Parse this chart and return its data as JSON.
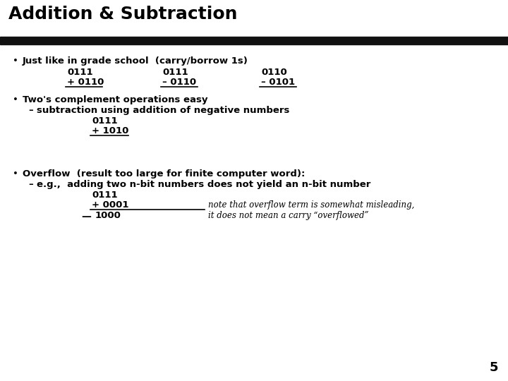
{
  "title": "Addition & Subtraction",
  "bg_color": "#ffffff",
  "title_color": "#000000",
  "bar_color": "#1a1a1a",
  "title_fontsize": 18,
  "body_fontsize": 9.5,
  "mono_fontsize": 9.5,
  "note_fontsize": 8.5,
  "page_number": "5",
  "bullet1_text": "Just like in grade school  (carry/borrow 1s)",
  "bullet2_text": "Two's complement operations easy",
  "bullet2_sub": "subtraction using addition of negative numbers",
  "bullet3_text": "Overflow  (result too large for finite computer word):",
  "bullet3_sub": "e.g.,  adding two n-bit numbers does not yield an n-bit number",
  "note_text1": "note that overflow term is somewhat misleading,",
  "note_text2": "it does not mean a carry “overflowed”"
}
